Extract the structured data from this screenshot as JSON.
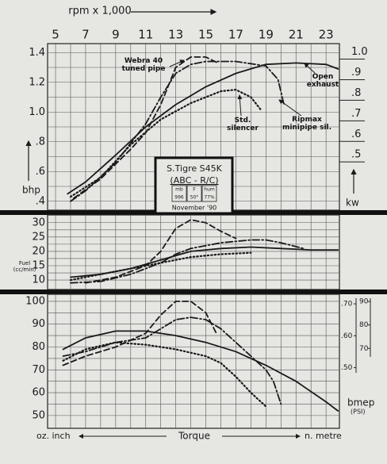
{
  "chart_data": [
    {
      "type": "line",
      "xlabel": "rpm x 1,000",
      "xlim": [
        4.47,
        23.89
      ],
      "xticks": [
        5,
        7,
        9,
        11,
        13,
        15,
        17,
        19,
        21,
        23
      ],
      "ylabel": "bhp",
      "ylim": [
        0.34,
        1.46
      ],
      "yticks": [
        {
          "value": 0.4,
          "label": ".4"
        },
        {
          "value": 0.6,
          "label": ".6"
        },
        {
          "value": 0.8,
          "label": ".8"
        },
        {
          "value": 1,
          "label": "1.0"
        },
        1.2,
        1.4
      ],
      "y2label": "kw",
      "y2lim": [
        0.25,
        1.06
      ],
      "y2ticks": [
        {
          "value": 0.5,
          "label": ".5"
        },
        {
          "value": 0.6,
          "label": ".6"
        },
        {
          "value": 0.7,
          "label": ".7"
        },
        {
          "value": 0.8,
          "label": ".8"
        },
        {
          "value": 0.9,
          "label": ".9"
        },
        {
          "value": 1,
          "label": "1.0"
        }
      ],
      "grid": true,
      "minor_grid": true,
      "info_box": {
        "title": "S.Tigre S45K",
        "subtitle": "(ABC - R/C)",
        "headers": [
          "mb",
          "F",
          "hum"
        ],
        "cells": [
          "996",
          "50°",
          "77%"
        ],
        "date": "November '90"
      },
      "series": [
        {
          "name": "Webra 40 tuned pipe",
          "style": "dashed",
          "color": "#1a1a1a",
          "x": [
            6.2,
            8,
            10,
            11,
            12,
            13,
            14,
            15,
            15.8
          ],
          "values": [
            0.42,
            0.55,
            0.75,
            0.86,
            1.05,
            1.3,
            1.37,
            1.37,
            1.33
          ]
        },
        {
          "name": "Open exhaust",
          "style": "solid",
          "color": "#1a1a1a",
          "x": [
            5.8,
            7,
            9,
            11,
            13,
            15,
            17,
            19,
            21,
            23,
            23.8
          ],
          "values": [
            0.45,
            0.53,
            0.71,
            0.9,
            1.05,
            1.17,
            1.26,
            1.32,
            1.33,
            1.32,
            1.29
          ]
        },
        {
          "name": "Std. silencer",
          "style": "dotted",
          "color": "#1a1a1a",
          "x": [
            6,
            8,
            10,
            12,
            14,
            16,
            17,
            18,
            18.7
          ],
          "values": [
            0.43,
            0.56,
            0.78,
            0.95,
            1.06,
            1.14,
            1.15,
            1.1,
            1.01
          ]
        },
        {
          "name": "Ripmax minipipe sil.",
          "style": "dashdot",
          "color": "#1a1a1a",
          "x": [
            6,
            7,
            9,
            11,
            12,
            13,
            14,
            15,
            17,
            19,
            19.8,
            20.2
          ],
          "values": [
            0.4,
            0.47,
            0.66,
            0.92,
            1.1,
            1.26,
            1.32,
            1.34,
            1.34,
            1.31,
            1.22,
            1.05
          ]
        }
      ]
    },
    {
      "type": "line",
      "xlim": [
        4.47,
        23.89
      ],
      "ylabel": "Fuel (cc/min)",
      "ylim": [
        6.7,
        32.7
      ],
      "yticks": [
        10,
        15,
        20,
        25,
        30
      ],
      "grid": true,
      "minor_grid": true,
      "series": [
        {
          "style": "dashed",
          "color": "#1a1a1a",
          "x": [
            7,
            9,
            11,
            12,
            13,
            14,
            15,
            16,
            17
          ],
          "values": [
            9,
            11,
            15,
            20,
            28,
            31,
            30,
            27,
            24.5
          ]
        },
        {
          "style": "solid",
          "color": "#1a1a1a",
          "x": [
            6,
            8,
            10,
            12,
            14,
            16,
            18,
            20,
            22,
            23.8
          ],
          "values": [
            11,
            12,
            14,
            17,
            20,
            21,
            21.5,
            21,
            20.5,
            20.5
          ]
        },
        {
          "style": "dotted",
          "color": "#1a1a1a",
          "x": [
            6,
            8,
            10,
            12,
            14,
            16,
            18
          ],
          "values": [
            10,
            12,
            14,
            16,
            18,
            19,
            19.5
          ]
        },
        {
          "style": "dashdot",
          "color": "#1a1a1a",
          "x": [
            6,
            8,
            10,
            12,
            13,
            14,
            16,
            18,
            19,
            20,
            21.5
          ],
          "values": [
            9,
            9.5,
            12,
            16,
            19,
            21,
            23,
            24,
            24,
            23,
            21
          ]
        }
      ]
    },
    {
      "type": "line",
      "xlim": [
        4.47,
        23.89
      ],
      "xlabel": "Torque",
      "ylabel": "oz. inch",
      "ylim": [
        44.4,
        103.1
      ],
      "yticks": [
        50,
        60,
        70,
        80,
        90,
        100
      ],
      "y2label": "n. metre",
      "y2lim": [
        0.31,
        0.73
      ],
      "y2ticks": [
        {
          "value": 0.5,
          "label": ".50"
        },
        {
          "value": 0.6,
          "label": ".60"
        },
        {
          "value": 0.7,
          "label": ".70"
        }
      ],
      "y3label": "bmep",
      "y3unit": "(PSI)",
      "y3lim": [
        35.9,
        93.1
      ],
      "y3ticks": [
        70,
        80,
        90
      ],
      "grid": true,
      "minor_grid": true,
      "series": [
        {
          "style": "dashed",
          "color": "#1a1a1a",
          "x": [
            5.5,
            7,
            9,
            11,
            12,
            13,
            14,
            15,
            15.7
          ],
          "values": [
            72,
            76,
            80,
            86,
            94,
            100,
            100,
            95,
            86
          ]
        },
        {
          "style": "solid",
          "color": "#1a1a1a",
          "x": [
            5.5,
            7,
            9,
            11,
            13,
            15,
            17,
            19,
            21,
            23,
            23.8
          ],
          "values": [
            79,
            84,
            87,
            87,
            85,
            82,
            78,
            72,
            65,
            56,
            52
          ]
        },
        {
          "style": "dotted",
          "color": "#1a1a1a",
          "x": [
            5.5,
            7,
            9,
            11,
            13,
            15,
            16,
            17,
            18,
            19
          ],
          "values": [
            74,
            79,
            82,
            81,
            79,
            76,
            73,
            67,
            60,
            54
          ]
        },
        {
          "style": "dashdot",
          "color": "#1a1a1a",
          "x": [
            5.5,
            7,
            9,
            11,
            12,
            13,
            14,
            15,
            16,
            17,
            18,
            19,
            19.5,
            20
          ],
          "values": [
            76,
            78,
            82,
            84,
            88,
            92,
            93,
            92,
            88,
            82,
            76,
            70,
            65,
            55
          ]
        }
      ]
    }
  ]
}
